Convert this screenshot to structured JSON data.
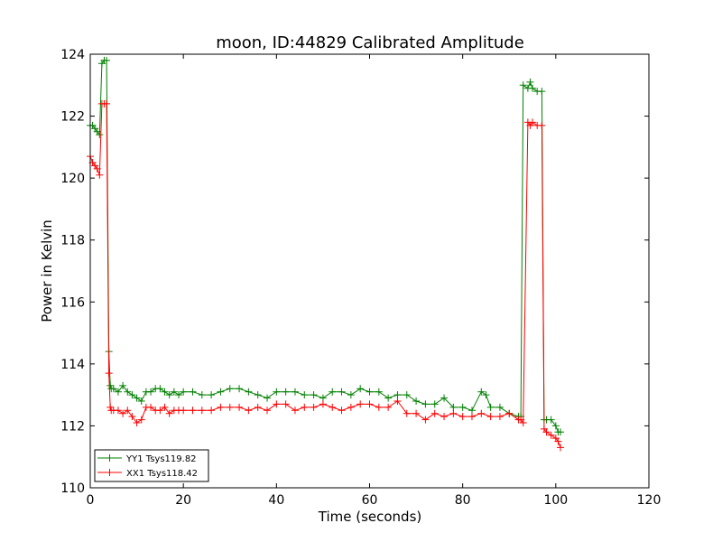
{
  "chart_data": {
    "type": "line",
    "title": "moon, ID:44829 Calibrated Amplitude",
    "xlabel": "Time (seconds)",
    "ylabel": "Power in Kelvin",
    "xlim": [
      0,
      120
    ],
    "ylim": [
      110,
      124
    ],
    "xticks": [
      "0",
      "20",
      "40",
      "60",
      "80",
      "100",
      "120"
    ],
    "yticks": [
      "110",
      "112",
      "114",
      "116",
      "118",
      "120",
      "122",
      "124"
    ],
    "grid": false,
    "legend_position": "lower-left",
    "marker": "plus",
    "series": [
      {
        "name": "YY1 Tsys119.82",
        "color": "#008000",
        "x": [
          0,
          0.5,
          1,
          1.5,
          2,
          2.5,
          3,
          3.5,
          4,
          4.3,
          4.5,
          5,
          6,
          7,
          8,
          9,
          10,
          11,
          12,
          13,
          14,
          15,
          16,
          17,
          18,
          19,
          20,
          22,
          24,
          26,
          28,
          30,
          32,
          34,
          36,
          38,
          40,
          42,
          44,
          46,
          48,
          50,
          52,
          54,
          56,
          58,
          60,
          62,
          64,
          66,
          68,
          70,
          72,
          74,
          76,
          78,
          80,
          82,
          84,
          85,
          86,
          88,
          90,
          92,
          92.5,
          93,
          94,
          94.5,
          95,
          96,
          97,
          97.5,
          98,
          99,
          100,
          100.5,
          101
        ],
        "values": [
          121.7,
          121.7,
          121.6,
          121.5,
          121.4,
          123.7,
          123.8,
          123.8,
          114.4,
          113.3,
          113.2,
          113.2,
          113.1,
          113.3,
          113.1,
          113.0,
          112.9,
          112.8,
          113.1,
          113.1,
          113.2,
          113.2,
          113.1,
          113.0,
          113.1,
          113.0,
          113.1,
          113.1,
          113.0,
          113.0,
          113.1,
          113.2,
          113.2,
          113.1,
          113.0,
          112.9,
          113.1,
          113.1,
          113.1,
          113.0,
          113.0,
          112.9,
          113.1,
          113.1,
          113.0,
          113.2,
          113.1,
          113.1,
          112.9,
          113.0,
          113.0,
          112.8,
          112.7,
          112.7,
          112.9,
          112.6,
          112.6,
          112.5,
          113.1,
          113.0,
          112.6,
          112.6,
          112.4,
          112.3,
          112.3,
          123.0,
          122.9,
          123.1,
          122.9,
          122.8,
          122.8,
          112.2,
          112.2,
          112.2,
          112.0,
          111.8,
          111.8
        ]
      },
      {
        "name": "XX1 Tsys118.42",
        "color": "#ff0000",
        "x": [
          0,
          0.5,
          1,
          1.5,
          2,
          2.5,
          3,
          3.5,
          4,
          4.3,
          4.5,
          5,
          6,
          7,
          8,
          9,
          10,
          11,
          12,
          13,
          14,
          15,
          16,
          17,
          18,
          19,
          20,
          22,
          24,
          26,
          28,
          30,
          32,
          34,
          36,
          38,
          40,
          42,
          44,
          46,
          48,
          50,
          52,
          54,
          56,
          58,
          60,
          62,
          64,
          66,
          68,
          70,
          72,
          74,
          76,
          78,
          80,
          82,
          84,
          86,
          88,
          90,
          92,
          92.5,
          93,
          94,
          94.5,
          95,
          96,
          97,
          97.5,
          98,
          99,
          100,
          100.5,
          101
        ],
        "values": [
          120.7,
          120.5,
          120.4,
          120.3,
          120.1,
          122.4,
          122.4,
          122.4,
          113.7,
          112.6,
          112.5,
          112.5,
          112.5,
          112.4,
          112.5,
          112.3,
          112.1,
          112.2,
          112.6,
          112.6,
          112.5,
          112.5,
          112.6,
          112.4,
          112.5,
          112.5,
          112.5,
          112.5,
          112.5,
          112.5,
          112.6,
          112.6,
          112.6,
          112.5,
          112.6,
          112.5,
          112.7,
          112.7,
          112.5,
          112.6,
          112.6,
          112.7,
          112.6,
          112.5,
          112.6,
          112.7,
          112.7,
          112.6,
          112.6,
          112.8,
          112.4,
          112.4,
          112.2,
          112.4,
          112.3,
          112.4,
          112.3,
          112.3,
          112.4,
          112.3,
          112.3,
          112.4,
          112.2,
          112.2,
          112.1,
          121.8,
          121.7,
          121.8,
          121.7,
          121.7,
          111.9,
          111.8,
          111.7,
          111.6,
          111.5,
          111.3
        ]
      }
    ]
  }
}
